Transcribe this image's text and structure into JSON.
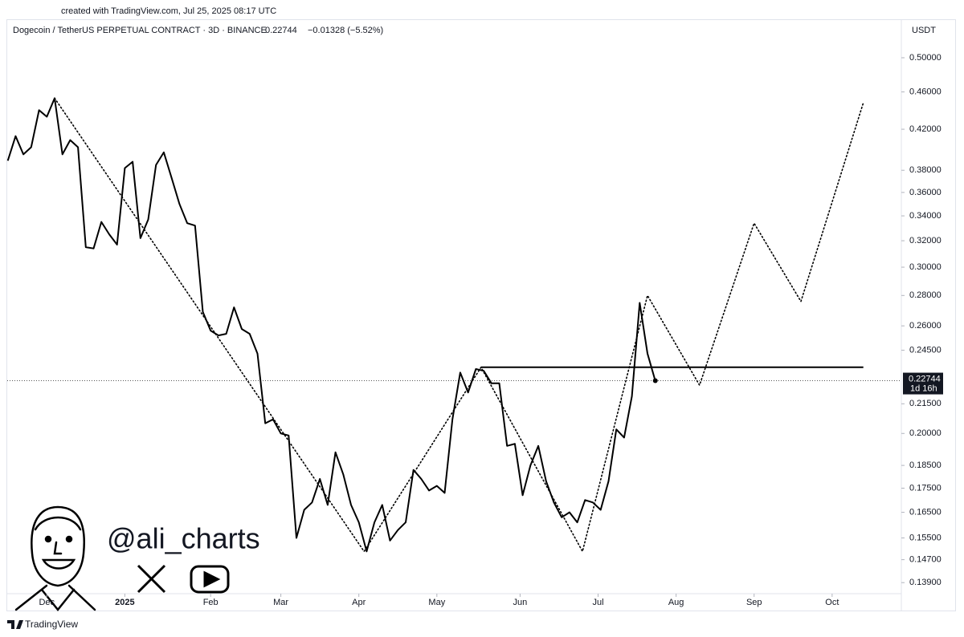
{
  "chart_data": {
    "type": "line",
    "created": "created with TradingView.com, Jul 25, 2025 08:17 UTC",
    "title": "Dogecoin / TetherUS PERPETUAL CONTRACT · 3D · BINANCE",
    "last_price": 0.22744,
    "last_price_label": "0.22744",
    "change": "−0.01328 (−5.52%)",
    "countdown": "1d 16h",
    "y_unit": "USDT",
    "watermark": "@ali_charts",
    "brand": "TradingView",
    "log_scale": true,
    "grid": false,
    "xlim": [
      -18,
      328
    ],
    "ylim": [
      0.1353,
      0.5428
    ],
    "xticks": [
      {
        "value": 0,
        "label": "Dec"
      },
      {
        "value": 30,
        "label": "2025"
      },
      {
        "value": 63,
        "label": "Feb"
      },
      {
        "value": 90,
        "label": "Mar"
      },
      {
        "value": 120,
        "label": "Apr"
      },
      {
        "value": 150,
        "label": "May"
      },
      {
        "value": 182,
        "label": "Jun"
      },
      {
        "value": 212,
        "label": "Jul"
      },
      {
        "value": 242,
        "label": "Aug"
      },
      {
        "value": 272,
        "label": "Sep"
      },
      {
        "value": 302,
        "label": "Oct"
      }
    ],
    "yticks": [
      {
        "value": 0.5,
        "label": "0.50000"
      },
      {
        "value": 0.46,
        "label": "0.46000"
      },
      {
        "value": 0.42,
        "label": "0.42000"
      },
      {
        "value": 0.38,
        "label": "0.38000"
      },
      {
        "value": 0.36,
        "label": "0.36000"
      },
      {
        "value": 0.34,
        "label": "0.34000"
      },
      {
        "value": 0.32,
        "label": "0.32000"
      },
      {
        "value": 0.3,
        "label": "0.30000"
      },
      {
        "value": 0.28,
        "label": "0.28000"
      },
      {
        "value": 0.26,
        "label": "0.26000"
      },
      {
        "value": 0.245,
        "label": "0.24500"
      },
      {
        "value": 0.215,
        "label": "0.21500"
      },
      {
        "value": 0.2,
        "label": "0.20000"
      },
      {
        "value": 0.185,
        "label": "0.18500"
      },
      {
        "value": 0.175,
        "label": "0.17500"
      },
      {
        "value": 0.165,
        "label": "0.16500"
      },
      {
        "value": 0.155,
        "label": "0.15500"
      },
      {
        "value": 0.147,
        "label": "0.14700"
      },
      {
        "value": 0.139,
        "label": "0.13900"
      }
    ],
    "series": [
      {
        "color": "#000000",
        "style": "solid",
        "x": [
          -15,
          -12,
          -9,
          -6,
          -3,
          0,
          3,
          6,
          9,
          12,
          15,
          18,
          21,
          24,
          27,
          30,
          33,
          36,
          39,
          42,
          45,
          48,
          51,
          54,
          57,
          60,
          63,
          66,
          69,
          72,
          75,
          78,
          81,
          84,
          87,
          90,
          93,
          96,
          99,
          102,
          105,
          108,
          111,
          114,
          117,
          120,
          123,
          126,
          129,
          132,
          135,
          138,
          141,
          144,
          147,
          150,
          153,
          156,
          159,
          162,
          165,
          168,
          171,
          174,
          177,
          180,
          183,
          186,
          189,
          192,
          195,
          198,
          201,
          204,
          207,
          210,
          213,
          216,
          219,
          222,
          225,
          228,
          231,
          234
        ],
        "values": [
          0.389,
          0.413,
          0.395,
          0.402,
          0.44,
          0.433,
          0.453,
          0.395,
          0.409,
          0.402,
          0.315,
          0.314,
          0.335,
          0.325,
          0.317,
          0.382,
          0.388,
          0.322,
          0.337,
          0.385,
          0.397,
          0.373,
          0.35,
          0.334,
          0.332,
          0.269,
          0.257,
          0.254,
          0.255,
          0.272,
          0.258,
          0.255,
          0.243,
          0.205,
          0.207,
          0.2,
          0.199,
          0.155,
          0.166,
          0.169,
          0.179,
          0.168,
          0.191,
          0.181,
          0.168,
          0.161,
          0.15,
          0.161,
          0.168,
          0.154,
          0.158,
          0.161,
          0.183,
          0.179,
          0.174,
          0.176,
          0.173,
          0.207,
          0.232,
          0.221,
          0.234,
          0.233,
          0.226,
          0.226,
          0.194,
          0.195,
          0.172,
          0.185,
          0.194,
          0.178,
          0.169,
          0.163,
          0.165,
          0.161,
          0.17,
          0.169,
          0.166,
          0.178,
          0.202,
          0.198,
          0.219,
          0.275,
          0.243,
          0.22744
        ]
      },
      {
        "color": "#000000",
        "style": "dotted",
        "x": [
          3,
          122,
          167,
          206,
          231,
          251,
          272,
          290,
          314
        ],
        "values": [
          0.453,
          0.15,
          0.235,
          0.15,
          0.28,
          0.225,
          0.334,
          0.276,
          0.448
        ]
      },
      {
        "color": "#000000",
        "style": "solid",
        "x": [
          167,
          314
        ],
        "values": [
          0.235,
          0.235
        ]
      }
    ]
  }
}
